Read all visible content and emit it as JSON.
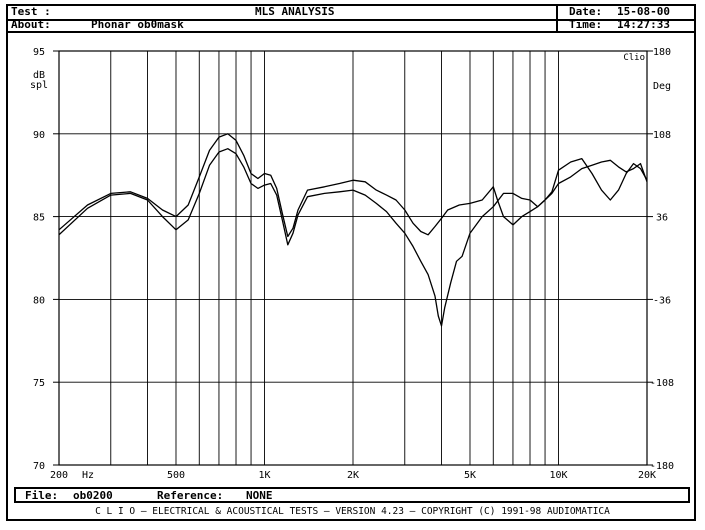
{
  "header": {
    "test_label": "Test :",
    "about_label": "About:",
    "about_value": "Phonar ob0mask",
    "title": "MLS ANALYSIS",
    "date_label": "Date:",
    "date_value": "15-08-00",
    "time_label": "Time:",
    "time_value": "14:27:33"
  },
  "footer": {
    "file_label": "File:",
    "file_value": "ob0200",
    "reference_label": "Reference:",
    "reference_value": "NONE",
    "credit": "C L I O  –  ELECTRICAL & ACOUSTICAL TESTS  –  VERSION 4.23  –  COPYRIGHT (C) 1991-98 AUDIOMATICA"
  },
  "colors": {
    "ink": "#000000",
    "background": "#ffffff"
  },
  "chart_data": {
    "type": "line",
    "xscale": "log",
    "xlim": [
      200,
      20000
    ],
    "ylim": [
      70,
      95
    ],
    "y2lim": [
      -180,
      180
    ],
    "xunit": "Hz",
    "ylabel": "dB\nspl",
    "y2label": "Deg",
    "corner_label": "Clio",
    "grid": true,
    "x_tick_labels": [
      {
        "x": 200,
        "label": "200"
      },
      {
        "x": 500,
        "label": "500"
      },
      {
        "x": 1000,
        "label": "1K"
      },
      {
        "x": 2000,
        "label": "2K"
      },
      {
        "x": 5000,
        "label": "5K"
      },
      {
        "x": 10000,
        "label": "10K"
      },
      {
        "x": 20000,
        "label": "20K"
      }
    ],
    "x_gridlines": [
      300,
      400,
      500,
      600,
      700,
      800,
      900,
      1000,
      2000,
      3000,
      4000,
      5000,
      6000,
      7000,
      8000,
      9000,
      10000
    ],
    "y_ticks": [
      95,
      90,
      85,
      80,
      75,
      70
    ],
    "y2_ticks": [
      "180",
      "108",
      "36",
      "-36",
      "-108",
      "-180"
    ],
    "series": [
      {
        "points": [
          [
            200,
            84.2
          ],
          [
            250,
            85.7
          ],
          [
            300,
            86.4
          ],
          [
            350,
            86.5
          ],
          [
            400,
            86.1
          ],
          [
            450,
            85.4
          ],
          [
            500,
            85.0
          ],
          [
            550,
            85.7
          ],
          [
            600,
            87.4
          ],
          [
            650,
            89.0
          ],
          [
            700,
            89.8
          ],
          [
            750,
            90.0
          ],
          [
            800,
            89.6
          ],
          [
            850,
            88.7
          ],
          [
            900,
            87.6
          ],
          [
            950,
            87.3
          ],
          [
            1000,
            87.6
          ],
          [
            1050,
            87.5
          ],
          [
            1100,
            86.7
          ],
          [
            1150,
            85.2
          ],
          [
            1200,
            83.8
          ],
          [
            1250,
            84.3
          ],
          [
            1300,
            85.4
          ],
          [
            1400,
            86.6
          ],
          [
            1600,
            86.8
          ],
          [
            1800,
            87.0
          ],
          [
            2000,
            87.2
          ],
          [
            2200,
            87.1
          ],
          [
            2400,
            86.6
          ],
          [
            2600,
            86.3
          ],
          [
            2800,
            86.0
          ],
          [
            3000,
            85.4
          ],
          [
            3200,
            84.6
          ],
          [
            3400,
            84.1
          ],
          [
            3600,
            83.9
          ],
          [
            3800,
            84.4
          ],
          [
            4000,
            84.9
          ],
          [
            4200,
            85.4
          ],
          [
            4600,
            85.7
          ],
          [
            5000,
            85.8
          ],
          [
            5500,
            86.0
          ],
          [
            6000,
            86.8
          ],
          [
            6200,
            86.0
          ],
          [
            6500,
            85.0
          ],
          [
            7000,
            84.5
          ],
          [
            7500,
            85.0
          ],
          [
            8000,
            85.3
          ],
          [
            8500,
            85.6
          ],
          [
            9000,
            86.0
          ],
          [
            9500,
            86.5
          ],
          [
            10000,
            87.8
          ],
          [
            11000,
            88.3
          ],
          [
            12000,
            88.5
          ],
          [
            13000,
            87.6
          ],
          [
            14000,
            86.6
          ],
          [
            15000,
            86.0
          ],
          [
            16000,
            86.6
          ],
          [
            17000,
            87.6
          ],
          [
            18000,
            88.2
          ],
          [
            19000,
            87.9
          ],
          [
            20000,
            87.2
          ]
        ]
      },
      {
        "points": [
          [
            200,
            83.9
          ],
          [
            250,
            85.5
          ],
          [
            300,
            86.3
          ],
          [
            350,
            86.4
          ],
          [
            400,
            86.0
          ],
          [
            450,
            85.0
          ],
          [
            500,
            84.2
          ],
          [
            550,
            84.8
          ],
          [
            600,
            86.4
          ],
          [
            650,
            88.1
          ],
          [
            700,
            88.9
          ],
          [
            750,
            89.1
          ],
          [
            800,
            88.8
          ],
          [
            850,
            88.0
          ],
          [
            900,
            87.0
          ],
          [
            950,
            86.7
          ],
          [
            1000,
            86.9
          ],
          [
            1050,
            87.0
          ],
          [
            1100,
            86.3
          ],
          [
            1150,
            84.8
          ],
          [
            1200,
            83.3
          ],
          [
            1250,
            84.0
          ],
          [
            1300,
            85.1
          ],
          [
            1400,
            86.2
          ],
          [
            1600,
            86.4
          ],
          [
            1800,
            86.5
          ],
          [
            2000,
            86.6
          ],
          [
            2200,
            86.3
          ],
          [
            2400,
            85.8
          ],
          [
            2600,
            85.3
          ],
          [
            2800,
            84.6
          ],
          [
            3000,
            84.0
          ],
          [
            3200,
            83.2
          ],
          [
            3400,
            82.3
          ],
          [
            3600,
            81.5
          ],
          [
            3800,
            80.2
          ],
          [
            3900,
            79.0
          ],
          [
            4000,
            78.4
          ],
          [
            4100,
            79.5
          ],
          [
            4300,
            81.0
          ],
          [
            4500,
            82.3
          ],
          [
            4700,
            82.6
          ],
          [
            5000,
            84.0
          ],
          [
            5500,
            85.0
          ],
          [
            6000,
            85.6
          ],
          [
            6500,
            86.4
          ],
          [
            7000,
            86.4
          ],
          [
            7500,
            86.1
          ],
          [
            8000,
            86.0
          ],
          [
            8500,
            85.6
          ],
          [
            9000,
            86.0
          ],
          [
            9500,
            86.4
          ],
          [
            10000,
            87.0
          ],
          [
            11000,
            87.4
          ],
          [
            12000,
            87.9
          ],
          [
            13000,
            88.1
          ],
          [
            14000,
            88.3
          ],
          [
            15000,
            88.4
          ],
          [
            16000,
            88.0
          ],
          [
            17000,
            87.7
          ],
          [
            18000,
            87.9
          ],
          [
            19000,
            88.2
          ],
          [
            20000,
            87.1
          ]
        ]
      }
    ]
  }
}
